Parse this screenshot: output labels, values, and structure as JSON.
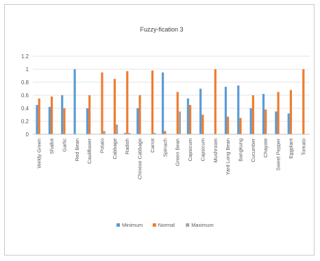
{
  "chart_data": {
    "type": "bar",
    "title": "Fuzzy-fication 3",
    "categories": [
      "Weldy Green",
      "Shallot",
      "Garlic",
      "Red Bean",
      "Cauliflower",
      "Potato",
      "Cabbage",
      "Radish",
      "Chinese Cabbage",
      "Carrot",
      "Spinach",
      "Green Bean",
      "Capsicum",
      "Capsicum",
      "Mushroom",
      "Yard Long Bean",
      "Bangkung",
      "Cucumber",
      "Chayote",
      "Sweet Pepper",
      "Eggplant",
      "Tomato"
    ],
    "series": [
      {
        "name": "Minimum",
        "color": "#5b9bd5",
        "values": [
          0.45,
          0.42,
          0.6,
          1.0,
          0.4,
          0.0,
          0.0,
          0.02,
          0.4,
          0.0,
          0.95,
          0.0,
          0.55,
          0.7,
          0.0,
          0.73,
          0.75,
          0.4,
          0.62,
          0.35,
          0.32,
          0.0
        ]
      },
      {
        "name": "Normal",
        "color": "#ed7d31",
        "values": [
          0.55,
          0.58,
          0.4,
          0.0,
          0.6,
          0.95,
          0.85,
          0.97,
          0.6,
          0.98,
          0.05,
          0.65,
          0.45,
          0.3,
          1.0,
          0.27,
          0.25,
          0.6,
          0.38,
          0.65,
          0.68,
          1.0
        ]
      },
      {
        "name": "Maximum",
        "color": "#a5a5a5",
        "values": [
          0.0,
          0.0,
          0.0,
          0.0,
          0.0,
          0.05,
          0.15,
          0.02,
          0.0,
          0.02,
          0.0,
          0.35,
          0.0,
          0.0,
          0.0,
          0.0,
          0.0,
          0.0,
          0.0,
          0.0,
          0.0,
          0.0
        ]
      }
    ],
    "y_ticks": [
      "0",
      "0.2",
      "0.4",
      "0.6",
      "0.8",
      "1",
      "1.2"
    ],
    "ylim": [
      0,
      1.2
    ],
    "grid": true,
    "legend_position": "bottom"
  }
}
